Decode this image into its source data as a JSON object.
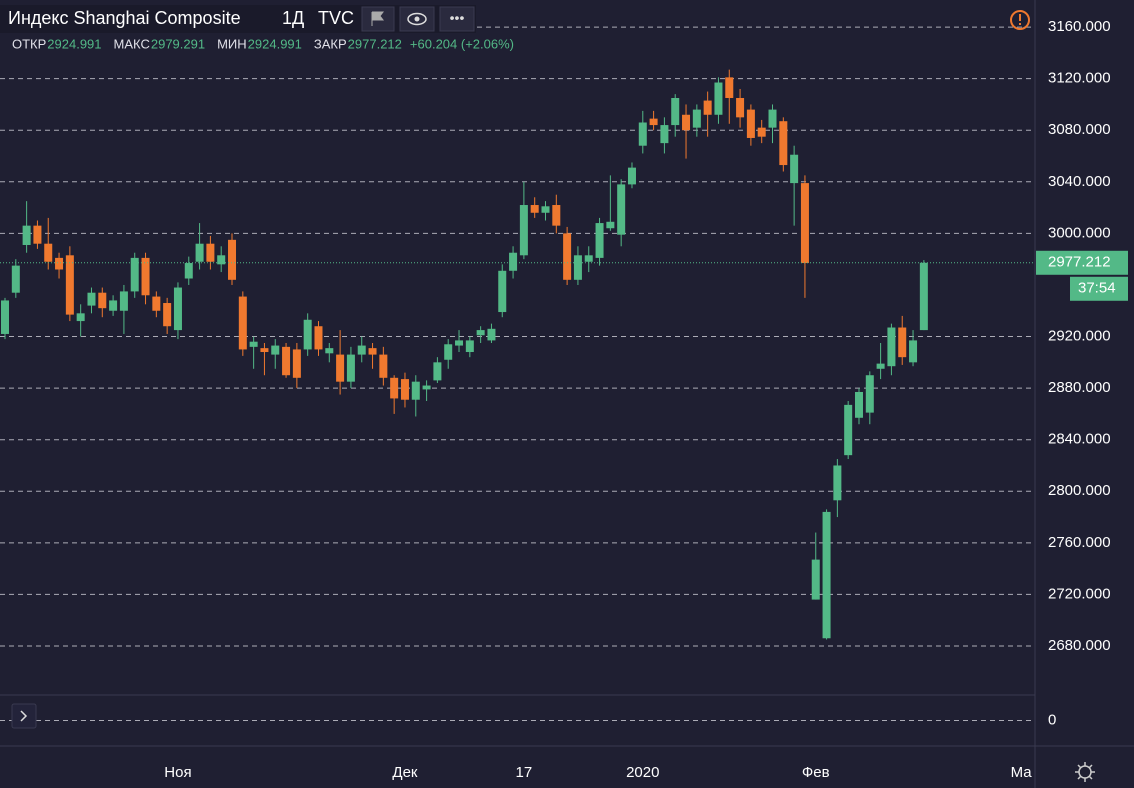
{
  "chart_data": {
    "type": "candlestick",
    "title": "Индекс Shanghai Composite",
    "interval": "1Д",
    "exchange": "TVC",
    "legend_labels": {
      "open": "ОТКР",
      "high": "МАКС",
      "low": "МИН",
      "close": "ЗАКР"
    },
    "change": "+60.204 (+2.06%)",
    "countdown": "37:54",
    "up_color": "#53b987",
    "down_color": "#f0792f",
    "categories": [
      null,
      null,
      null,
      null,
      null,
      null,
      null,
      null,
      null,
      null,
      null,
      null,
      null,
      null,
      null,
      null,
      "Ноя",
      null,
      null,
      null,
      null,
      null,
      null,
      null,
      null,
      null,
      null,
      null,
      null,
      null,
      null,
      null,
      null,
      null,
      null,
      null,
      null,
      "Дек",
      null,
      null,
      null,
      null,
      null,
      null,
      null,
      null,
      null,
      null,
      "17",
      null,
      null,
      null,
      null,
      null,
      null,
      null,
      null,
      null,
      null,
      "2020",
      null,
      null,
      null,
      null,
      null,
      null,
      null,
      null,
      null,
      null,
      null,
      null,
      null,
      null,
      null,
      "Фев",
      null,
      null,
      null,
      null,
      null,
      null,
      null,
      null,
      null,
      null,
      null,
      null,
      null,
      null,
      null,
      null,
      null,
      null,
      "Ма"
    ],
    "open": [
      2922,
      2954,
      2991,
      3006,
      2992,
      2981,
      2983,
      2932,
      2944,
      2954,
      2940,
      2940,
      2955,
      2981,
      2951,
      2946,
      2925,
      2965,
      2978,
      2992,
      2976,
      2995,
      2951,
      2912,
      2911,
      2906,
      2912,
      2910,
      2910,
      2928,
      2907,
      2906,
      2885,
      2906,
      2911,
      2906,
      2888,
      2887,
      2871,
      2879,
      2886,
      2902,
      2913,
      2908,
      2921,
      2917,
      2939,
      2971,
      2983,
      3022,
      3016,
      3022,
      3000,
      2964,
      2978,
      2981,
      3004,
      2999,
      3038,
      3068,
      3089,
      3070,
      3084,
      3092,
      3082,
      3103,
      3092,
      3121,
      3105,
      3096,
      3082,
      3082,
      3087,
      3039,
      3039,
      2716,
      2686,
      2793,
      2828,
      2857,
      2861,
      2895,
      2897,
      2927,
      2900,
      2924.991,
      null,
      null,
      null,
      null,
      null,
      null,
      null,
      null,
      null
    ],
    "high": [
      2950,
      2980,
      3025,
      3010,
      3012,
      2985,
      2990,
      2945,
      2958,
      2958,
      2952,
      2960,
      2985,
      2985,
      2955,
      2950,
      2962,
      2982,
      3008,
      2998,
      2990,
      3000,
      2955,
      2920,
      2915,
      2918,
      2915,
      2915,
      2938,
      2932,
      2915,
      2925,
      2912,
      2920,
      2915,
      2912,
      2890,
      2892,
      2890,
      2886,
      2904,
      2918,
      2925,
      2920,
      2928,
      2930,
      2976,
      2990,
      3040,
      3028,
      3025,
      3030,
      3005,
      2990,
      2990,
      3012,
      3045,
      3042,
      3055,
      3095,
      3095,
      3090,
      3108,
      3100,
      3100,
      3110,
      3121,
      3127,
      3112,
      3100,
      3088,
      3100,
      3090,
      3068,
      3045,
      2768,
      2786,
      2825,
      2870,
      2880,
      2893,
      2915,
      2930,
      2936,
      2925,
      2979.291,
      null,
      null,
      null,
      null,
      null,
      null,
      null,
      null,
      null
    ],
    "low": [
      2918,
      2950,
      2985,
      2988,
      2972,
      2965,
      2932,
      2920,
      2938,
      2935,
      2936,
      2922,
      2950,
      2945,
      2935,
      2922,
      2918,
      2960,
      2972,
      2972,
      2970,
      2960,
      2905,
      2895,
      2890,
      2895,
      2888,
      2880,
      2905,
      2905,
      2900,
      2875,
      2880,
      2900,
      2895,
      2882,
      2860,
      2865,
      2858,
      2870,
      2884,
      2895,
      2908,
      2904,
      2915,
      2915,
      2935,
      2965,
      2980,
      3012,
      3010,
      3000,
      2960,
      2960,
      2970,
      2975,
      3002,
      2990,
      3035,
      3062,
      3080,
      3062,
      3075,
      3058,
      3075,
      3075,
      3085,
      3085,
      3082,
      3068,
      3070,
      3070,
      3048,
      3006,
      2950,
      2716,
      2685,
      2780,
      2825,
      2852,
      2852,
      2887,
      2890,
      2898,
      2897,
      2924.991,
      null,
      null,
      null,
      null,
      null,
      null,
      null,
      null,
      null
    ],
    "close": [
      2948,
      2975,
      3006,
      2992,
      2978,
      2972,
      2937,
      2938,
      2954,
      2942,
      2948,
      2955,
      2981,
      2952,
      2940,
      2928,
      2958,
      2977,
      2992,
      2978,
      2983,
      2964,
      2910,
      2916,
      2908,
      2913,
      2890,
      2888,
      2933,
      2910,
      2911,
      2885,
      2906,
      2913,
      2906,
      2888,
      2872,
      2871,
      2885,
      2882,
      2900,
      2914,
      2917,
      2917,
      2925,
      2926,
      2971,
      2985,
      3022,
      3016,
      3021,
      3006,
      2964,
      2983,
      2983,
      3008,
      3009,
      3038,
      3051,
      3086,
      3084,
      3084,
      3105,
      3080,
      3096,
      3092,
      3117,
      3105,
      3090,
      3074,
      3075,
      3096,
      3053,
      3061,
      2977,
      2747,
      2784,
      2820,
      2867,
      2877,
      2890,
      2899,
      2927,
      2904,
      2917,
      2977.212,
      null,
      null,
      null,
      null,
      null,
      null,
      null,
      null,
      null
    ],
    "ylim": [
      2642,
      3181
    ],
    "yticks": [
      {
        "value": 3160,
        "label": "3160.000"
      },
      {
        "value": 3120,
        "label": "3120.000"
      },
      {
        "value": 3080,
        "label": "3080.000"
      },
      {
        "value": 3040,
        "label": "3040.000"
      },
      {
        "value": 3000,
        "label": "3000.000"
      },
      {
        "value": 2920,
        "label": "2920.000"
      },
      {
        "value": 2880,
        "label": "2880.000"
      },
      {
        "value": 2840,
        "label": "2840.000"
      },
      {
        "value": 2800,
        "label": "2800.000"
      },
      {
        "value": 2760,
        "label": "2760.000"
      },
      {
        "value": 2720,
        "label": "2720.000"
      },
      {
        "value": 2680,
        "label": "2680.000"
      }
    ],
    "grid": true,
    "lower_pane": {
      "ylim": [
        -1,
        1
      ],
      "yticks": [
        0
      ]
    }
  }
}
